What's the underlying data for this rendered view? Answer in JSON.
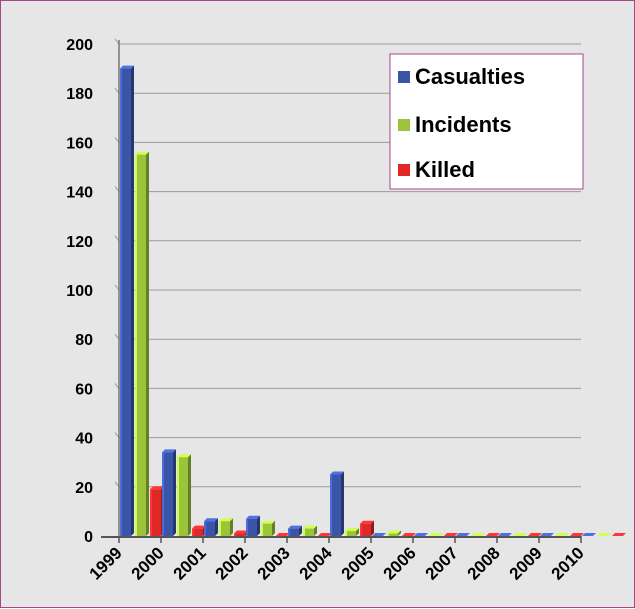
{
  "chart_data": {
    "type": "bar",
    "categories": [
      "1999",
      "2000",
      "2001",
      "2002",
      "2003",
      "2004",
      "2005",
      "2006",
      "2007",
      "2008",
      "2009",
      "2010"
    ],
    "series": [
      {
        "name": "Casualties",
        "color": "#3a54a8",
        "values": [
          190,
          34,
          6,
          7,
          3,
          25,
          0,
          0,
          0,
          0,
          0,
          0
        ]
      },
      {
        "name": "Incidents",
        "color": "#9bc43a",
        "values": [
          155,
          32,
          6,
          5,
          3,
          2,
          1,
          0,
          0,
          0,
          0,
          0
        ]
      },
      {
        "name": "Killed",
        "color": "#e02828",
        "values": [
          19,
          3,
          1,
          0,
          0,
          5,
          0,
          0,
          0,
          0,
          0,
          0
        ]
      }
    ],
    "ylim": [
      0,
      200
    ],
    "yticks": [
      "0",
      "20",
      "40",
      "60",
      "80",
      "100",
      "120",
      "140",
      "160",
      "180",
      "200"
    ],
    "grid": true,
    "legend_position": "top-right"
  }
}
